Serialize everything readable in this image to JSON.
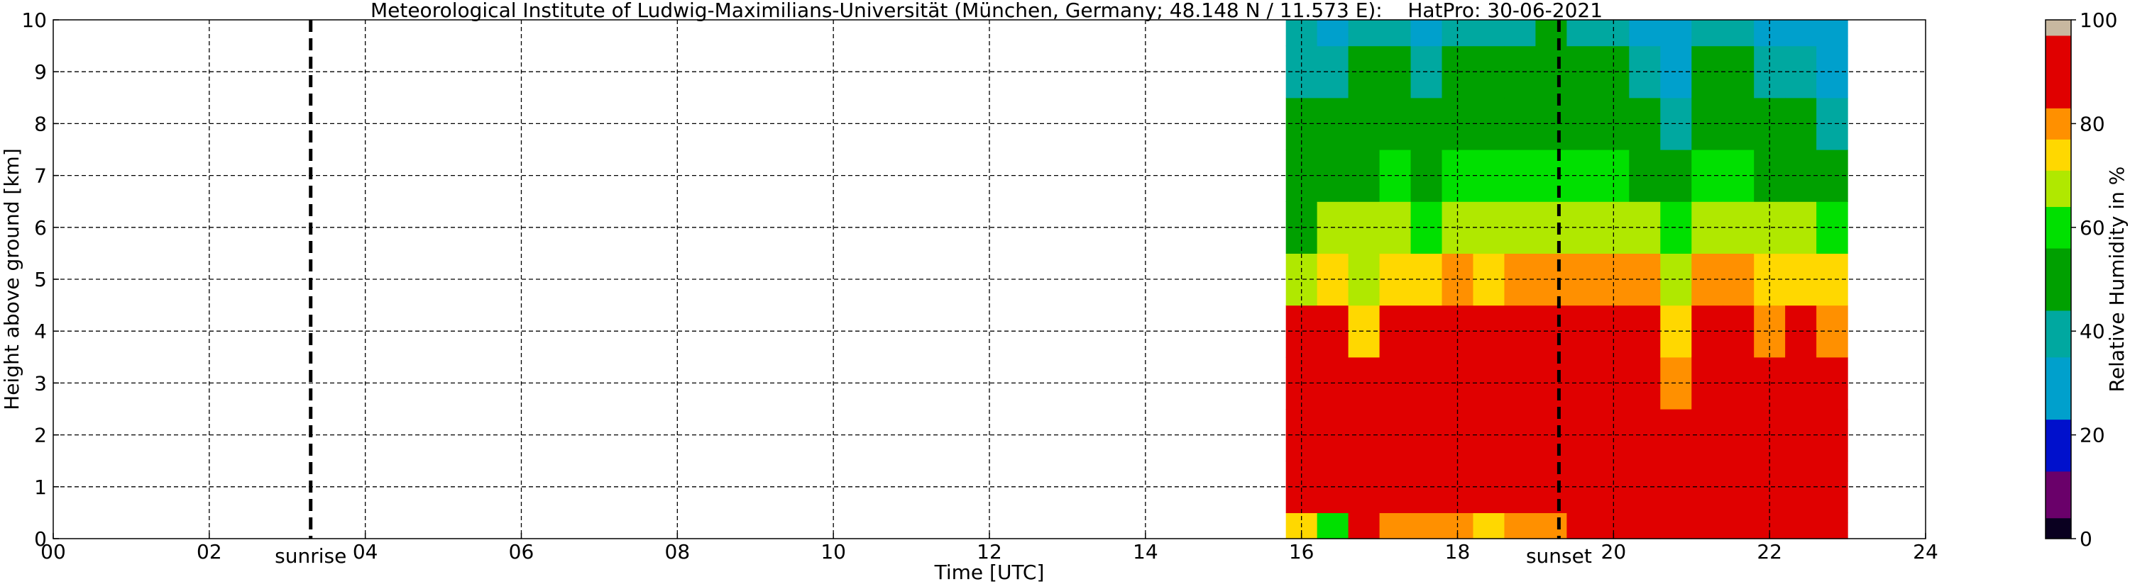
{
  "chart_data": {
    "type": "heatmap",
    "title": "Meteorological Institute of Ludwig-Maximilians-Universität (München, Germany; 48.148 N / 11.573 E):    HatPro: 30-06-2021",
    "xlabel": "Time [UTC]",
    "ylabel": "Height above ground [km]",
    "xlim": [
      0,
      24
    ],
    "ylim": [
      0,
      10
    ],
    "x_ticks": [
      "00",
      "02",
      "04",
      "06",
      "08",
      "10",
      "12",
      "14",
      "16",
      "18",
      "20",
      "22",
      "24"
    ],
    "y_ticks": [
      "0",
      "1",
      "2",
      "3",
      "4",
      "5",
      "6",
      "7",
      "8",
      "9",
      "10"
    ],
    "grid": true,
    "data_time_range": [
      15.8,
      23.0
    ],
    "events": [
      {
        "label": "sunrise",
        "x": 3.3
      },
      {
        "label": "sunset",
        "x": 19.3
      }
    ],
    "colorbar": {
      "label": "Relative Humidity in %",
      "range": [
        0,
        100
      ],
      "ticks": [
        "0",
        "20",
        "40",
        "60",
        "80",
        "100"
      ],
      "bands": [
        {
          "from": 0,
          "to": 4,
          "color": "#0a0020"
        },
        {
          "from": 4,
          "to": 13,
          "color": "#6a006a"
        },
        {
          "from": 13,
          "to": 23,
          "color": "#0010cc"
        },
        {
          "from": 23,
          "to": 35,
          "color": "#00a0cc"
        },
        {
          "from": 35,
          "to": 44,
          "color": "#00a8a0"
        },
        {
          "from": 44,
          "to": 56,
          "color": "#00a000"
        },
        {
          "from": 56,
          "to": 64,
          "color": "#00e000"
        },
        {
          "from": 64,
          "to": 71,
          "color": "#b0e800"
        },
        {
          "from": 71,
          "to": 77,
          "color": "#ffd800"
        },
        {
          "from": 77,
          "to": 83,
          "color": "#ff9000"
        },
        {
          "from": 83,
          "to": 97,
          "color": "#e00000"
        },
        {
          "from": 97,
          "to": 100,
          "color": "#c8b8a0"
        }
      ]
    },
    "segments": [
      {
        "t": 15.8,
        "values": [
          72,
          90,
          90,
          88,
          86,
          70,
          55,
          44,
          50,
          36,
          36
        ]
      },
      {
        "t": 16.2,
        "values": [
          63,
          90,
          90,
          90,
          86,
          76,
          65,
          50,
          46,
          40,
          34
        ]
      },
      {
        "t": 16.6,
        "values": [
          85,
          89,
          91,
          88,
          72,
          70,
          66,
          54,
          50,
          44,
          36
        ]
      },
      {
        "t": 17.0,
        "values": [
          80,
          90,
          91,
          90,
          84,
          76,
          66,
          58,
          52,
          46,
          40
        ]
      },
      {
        "t": 17.4,
        "values": [
          82,
          90,
          90,
          88,
          86,
          74,
          62,
          52,
          44,
          40,
          34
        ]
      },
      {
        "t": 17.8,
        "values": [
          78,
          88,
          90,
          88,
          86,
          78,
          68,
          58,
          50,
          44,
          36
        ]
      },
      {
        "t": 18.2,
        "values": [
          74,
          90,
          91,
          90,
          86,
          74,
          66,
          58,
          50,
          46,
          40
        ]
      },
      {
        "t": 18.6,
        "values": [
          80,
          88,
          90,
          89,
          87,
          80,
          68,
          58,
          52,
          48,
          42
        ]
      },
      {
        "t": 19.0,
        "values": [
          78,
          90,
          90,
          90,
          86,
          80,
          70,
          62,
          54,
          50,
          44
        ]
      },
      {
        "t": 19.4,
        "values": [
          85,
          90,
          91,
          90,
          86,
          80,
          70,
          62,
          54,
          48,
          42
        ]
      },
      {
        "t": 19.8,
        "values": [
          85,
          90,
          90,
          89,
          86,
          80,
          66,
          56,
          48,
          44,
          36
        ]
      },
      {
        "t": 20.2,
        "values": [
          84,
          90,
          90,
          89,
          86,
          80,
          66,
          50,
          46,
          40,
          34
        ]
      },
      {
        "t": 20.6,
        "values": [
          84,
          89,
          88,
          82,
          72,
          66,
          60,
          44,
          40,
          34,
          32
        ]
      },
      {
        "t": 21.0,
        "values": [
          86,
          90,
          90,
          88,
          86,
          80,
          70,
          56,
          50,
          44,
          36
        ]
      },
      {
        "t": 21.4,
        "values": [
          86,
          90,
          90,
          88,
          84,
          78,
          68,
          56,
          50,
          44,
          36
        ]
      },
      {
        "t": 21.8,
        "values": [
          86,
          90,
          90,
          86,
          78,
          72,
          66,
          50,
          46,
          40,
          34
        ]
      },
      {
        "t": 22.2,
        "values": [
          86,
          90,
          90,
          88,
          84,
          76,
          64,
          50,
          44,
          36,
          34
        ]
      },
      {
        "t": 22.6,
        "values": [
          84,
          88,
          88,
          86,
          80,
          72,
          62,
          46,
          40,
          34,
          32
        ]
      }
    ]
  }
}
